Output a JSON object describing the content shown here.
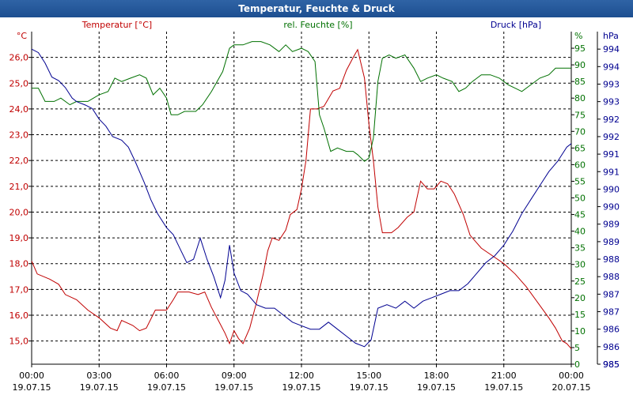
{
  "window": {
    "title": "Temperatur, Feuchte & Druck"
  },
  "chart_data": {
    "type": "line",
    "title": "Temperatur, Feuchte & Druck",
    "x_range_hours": [
      0,
      24
    ],
    "x_ticks": [
      {
        "h": 0,
        "time": "00:00",
        "date": "19.07.15"
      },
      {
        "h": 3,
        "time": "03:00",
        "date": "19.07.15"
      },
      {
        "h": 6,
        "time": "06:00",
        "date": "19.07.15"
      },
      {
        "h": 9,
        "time": "09:00",
        "date": "19.07.15"
      },
      {
        "h": 12,
        "time": "12:00",
        "date": "19.07.15"
      },
      {
        "h": 15,
        "time": "15:00",
        "date": "19.07.15"
      },
      {
        "h": 18,
        "time": "18:00",
        "date": "19.07.15"
      },
      {
        "h": 21,
        "time": "21:00",
        "date": "19.07.15"
      },
      {
        "h": 24,
        "time": "00:00",
        "date": "20.07.15"
      }
    ],
    "colors": {
      "temperature": "#c00000",
      "humidity": "#007000",
      "pressure": "#000090",
      "grid": "#000000"
    },
    "temperature": {
      "label": "Temperatur [°C]",
      "unit": "°C",
      "ylim": [
        14.1,
        27.0
      ],
      "ticks": [
        "15,0",
        "16,0",
        "17,0",
        "18,0",
        "19,0",
        "20,0",
        "21,0",
        "22,0",
        "23,0",
        "24,0",
        "25,0",
        "26,0"
      ],
      "tick_values": [
        15,
        16,
        17,
        18,
        19,
        20,
        21,
        22,
        23,
        24,
        25,
        26
      ],
      "points": [
        [
          0,
          18.1
        ],
        [
          0.25,
          17.6
        ],
        [
          0.8,
          17.4
        ],
        [
          1.2,
          17.2
        ],
        [
          1.5,
          16.8
        ],
        [
          2,
          16.6
        ],
        [
          2.5,
          16.2
        ],
        [
          3,
          15.9
        ],
        [
          3.5,
          15.5
        ],
        [
          3.8,
          15.4
        ],
        [
          4,
          15.8
        ],
        [
          4.5,
          15.6
        ],
        [
          4.8,
          15.4
        ],
        [
          5.1,
          15.5
        ],
        [
          5.5,
          16.2
        ],
        [
          6,
          16.2
        ],
        [
          6.3,
          16.6
        ],
        [
          6.5,
          16.9
        ],
        [
          7,
          16.9
        ],
        [
          7.4,
          16.8
        ],
        [
          7.7,
          16.9
        ],
        [
          8,
          16.3
        ],
        [
          8.3,
          15.8
        ],
        [
          8.6,
          15.3
        ],
        [
          8.8,
          14.9
        ],
        [
          9,
          15.4
        ],
        [
          9.2,
          15.1
        ],
        [
          9.4,
          14.9
        ],
        [
          9.7,
          15.5
        ],
        [
          10,
          16.5
        ],
        [
          10.3,
          17.6
        ],
        [
          10.5,
          18.5
        ],
        [
          10.7,
          19.0
        ],
        [
          11,
          18.9
        ],
        [
          11.3,
          19.3
        ],
        [
          11.5,
          19.9
        ],
        [
          11.8,
          20.1
        ],
        [
          12,
          20.9
        ],
        [
          12.2,
          22.0
        ],
        [
          12.4,
          24.0
        ],
        [
          12.7,
          24.0
        ],
        [
          13,
          24.1
        ],
        [
          13.4,
          24.7
        ],
        [
          13.7,
          24.8
        ],
        [
          14,
          25.5
        ],
        [
          14.3,
          26.0
        ],
        [
          14.5,
          26.3
        ],
        [
          14.8,
          25.2
        ],
        [
          15,
          23.4
        ],
        [
          15.2,
          22.0
        ],
        [
          15.4,
          20.2
        ],
        [
          15.6,
          19.2
        ],
        [
          16,
          19.2
        ],
        [
          16.3,
          19.4
        ],
        [
          16.7,
          19.8
        ],
        [
          17,
          20.0
        ],
        [
          17.3,
          21.2
        ],
        [
          17.6,
          20.9
        ],
        [
          17.9,
          20.9
        ],
        [
          18.2,
          21.2
        ],
        [
          18.5,
          21.1
        ],
        [
          18.8,
          20.7
        ],
        [
          19.2,
          19.9
        ],
        [
          19.5,
          19.1
        ],
        [
          20,
          18.6
        ],
        [
          20.5,
          18.3
        ],
        [
          21,
          18.0
        ],
        [
          21.5,
          17.6
        ],
        [
          22,
          17.1
        ],
        [
          22.5,
          16.5
        ],
        [
          23,
          15.9
        ],
        [
          23.3,
          15.5
        ],
        [
          23.6,
          15.0
        ],
        [
          23.8,
          14.9
        ],
        [
          24,
          14.7
        ]
      ]
    },
    "humidity": {
      "label": "rel. Feuchte [%]",
      "unit": "%",
      "ylim": [
        0,
        100
      ],
      "ticks": [
        "0",
        "5",
        "10",
        "15",
        "20",
        "25",
        "30",
        "35",
        "40",
        "45",
        "50",
        "55",
        "60",
        "65",
        "70",
        "75",
        "80",
        "85",
        "90",
        "95"
      ],
      "tick_values": [
        0,
        5,
        10,
        15,
        20,
        25,
        30,
        35,
        40,
        45,
        50,
        55,
        60,
        65,
        70,
        75,
        80,
        85,
        90,
        95
      ],
      "points": [
        [
          0,
          83
        ],
        [
          0.3,
          83
        ],
        [
          0.6,
          79
        ],
        [
          1,
          79
        ],
        [
          1.3,
          80
        ],
        [
          1.7,
          78
        ],
        [
          2,
          79
        ],
        [
          2.5,
          79
        ],
        [
          3,
          81
        ],
        [
          3.4,
          82
        ],
        [
          3.7,
          86
        ],
        [
          4,
          85
        ],
        [
          4.4,
          86
        ],
        [
          4.8,
          87
        ],
        [
          5.1,
          86
        ],
        [
          5.4,
          81
        ],
        [
          5.7,
          83
        ],
        [
          6,
          80
        ],
        [
          6.2,
          75
        ],
        [
          6.5,
          75
        ],
        [
          6.8,
          76
        ],
        [
          7,
          76
        ],
        [
          7.3,
          76
        ],
        [
          7.6,
          78
        ],
        [
          8,
          82
        ],
        [
          8.5,
          88
        ],
        [
          8.8,
          95
        ],
        [
          9,
          96
        ],
        [
          9.4,
          96
        ],
        [
          9.8,
          97
        ],
        [
          10.2,
          97
        ],
        [
          10.6,
          96
        ],
        [
          11,
          94
        ],
        [
          11.3,
          96
        ],
        [
          11.6,
          94
        ],
        [
          12,
          95
        ],
        [
          12.3,
          94
        ],
        [
          12.6,
          91
        ],
        [
          12.8,
          75
        ],
        [
          13,
          71
        ],
        [
          13.3,
          64
        ],
        [
          13.6,
          65
        ],
        [
          14,
          64
        ],
        [
          14.3,
          64
        ],
        [
          14.5,
          63
        ],
        [
          14.8,
          61
        ],
        [
          15,
          62
        ],
        [
          15.2,
          68
        ],
        [
          15.4,
          85
        ],
        [
          15.6,
          92
        ],
        [
          15.9,
          93
        ],
        [
          16.2,
          92
        ],
        [
          16.6,
          93
        ],
        [
          17,
          89
        ],
        [
          17.3,
          85
        ],
        [
          17.6,
          86
        ],
        [
          18,
          87
        ],
        [
          18.3,
          86
        ],
        [
          18.7,
          85
        ],
        [
          19,
          82
        ],
        [
          19.3,
          83
        ],
        [
          19.6,
          85
        ],
        [
          20,
          87
        ],
        [
          20.4,
          87
        ],
        [
          20.8,
          86
        ],
        [
          21.2,
          84
        ],
        [
          21.5,
          83
        ],
        [
          21.8,
          82
        ],
        [
          22.2,
          84
        ],
        [
          22.6,
          86
        ],
        [
          23,
          87
        ],
        [
          23.3,
          89
        ],
        [
          23.6,
          89
        ],
        [
          24,
          89
        ]
      ]
    },
    "pressure": {
      "label": "Druck [hPa]",
      "unit": "hPa",
      "ylim": [
        985.0,
        994.5
      ],
      "ticks": [
        "985",
        "986",
        "986",
        "987",
        "987",
        "988",
        "988",
        "989",
        "989",
        "990",
        "990",
        "991",
        "991",
        "992",
        "992",
        "993",
        "993",
        "994",
        "994"
      ],
      "tick_values": [
        985,
        985.5,
        986,
        986.5,
        987,
        987.5,
        988,
        988.5,
        989,
        989.5,
        990,
        990.5,
        991,
        991.5,
        992,
        992.5,
        993,
        993.5,
        994
      ],
      "points": [
        [
          0,
          994
        ],
        [
          0.3,
          993.9
        ],
        [
          0.6,
          993.6
        ],
        [
          0.9,
          993.2
        ],
        [
          1.2,
          993.1
        ],
        [
          1.5,
          992.9
        ],
        [
          1.8,
          992.6
        ],
        [
          2,
          992.5
        ],
        [
          2.4,
          992.4
        ],
        [
          2.7,
          992.3
        ],
        [
          3,
          992.0
        ],
        [
          3.3,
          991.8
        ],
        [
          3.6,
          991.5
        ],
        [
          4,
          991.4
        ],
        [
          4.3,
          991.2
        ],
        [
          4.6,
          990.8
        ],
        [
          5,
          990.2
        ],
        [
          5.3,
          989.7
        ],
        [
          5.6,
          989.3
        ],
        [
          6,
          988.9
        ],
        [
          6.3,
          988.7
        ],
        [
          6.6,
          988.3
        ],
        [
          6.9,
          987.9
        ],
        [
          7.2,
          988.0
        ],
        [
          7.5,
          988.6
        ],
        [
          7.8,
          988.0
        ],
        [
          8.1,
          987.5
        ],
        [
          8.4,
          986.9
        ],
        [
          8.6,
          987.4
        ],
        [
          8.8,
          988.4
        ],
        [
          9,
          987.6
        ],
        [
          9.3,
          987.1
        ],
        [
          9.6,
          987.0
        ],
        [
          10,
          986.7
        ],
        [
          10.4,
          986.6
        ],
        [
          10.8,
          986.6
        ],
        [
          11.2,
          986.4
        ],
        [
          11.6,
          986.2
        ],
        [
          12,
          986.1
        ],
        [
          12.4,
          986.0
        ],
        [
          12.8,
          986.0
        ],
        [
          13.2,
          986.2
        ],
        [
          13.6,
          986.0
        ],
        [
          14,
          985.8
        ],
        [
          14.4,
          985.6
        ],
        [
          14.8,
          985.5
        ],
        [
          15.1,
          985.7
        ],
        [
          15.4,
          986.6
        ],
        [
          15.8,
          986.7
        ],
        [
          16.2,
          986.6
        ],
        [
          16.6,
          986.8
        ],
        [
          17,
          986.6
        ],
        [
          17.4,
          986.8
        ],
        [
          17.8,
          986.9
        ],
        [
          18.2,
          987.0
        ],
        [
          18.6,
          987.1
        ],
        [
          19,
          987.1
        ],
        [
          19.4,
          987.3
        ],
        [
          19.8,
          987.6
        ],
        [
          20.2,
          987.9
        ],
        [
          20.6,
          988.1
        ],
        [
          21,
          988.4
        ],
        [
          21.4,
          988.8
        ],
        [
          21.8,
          989.3
        ],
        [
          22.2,
          989.7
        ],
        [
          22.6,
          990.1
        ],
        [
          23,
          990.5
        ],
        [
          23.4,
          990.8
        ],
        [
          23.8,
          991.2
        ],
        [
          24,
          991.3
        ]
      ]
    }
  }
}
